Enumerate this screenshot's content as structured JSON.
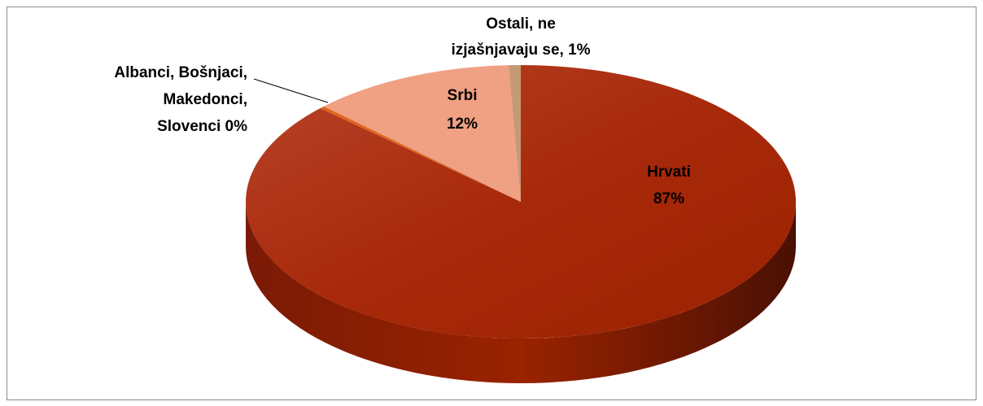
{
  "chart_data": {
    "type": "pie3d",
    "values": [
      87,
      0.3,
      12,
      0.7
    ],
    "labels": [
      [
        "Hrvati",
        "87%"
      ],
      [
        "Albanci, Bošnjaci,",
        "Makedonci,",
        "Slovenci 0%"
      ],
      [
        "Srbi",
        "12%"
      ],
      [
        "Ostali, ne",
        "izjašnjavaju se, 1%"
      ]
    ],
    "colors": [
      "#a8290b",
      "#e0651e",
      "#f0a083",
      "#c49a74"
    ]
  }
}
